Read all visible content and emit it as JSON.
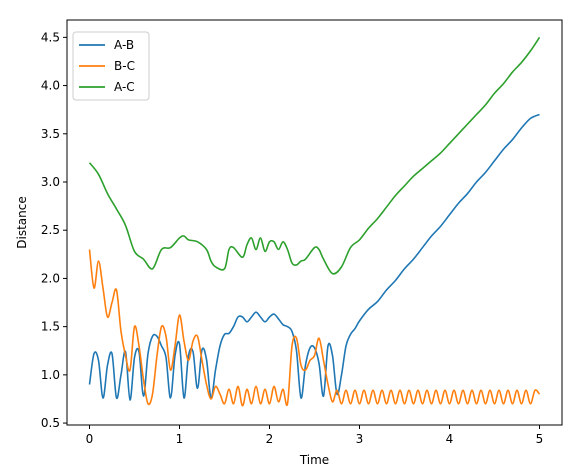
{
  "chart_data": {
    "type": "line",
    "title": "",
    "xlabel": "Time",
    "ylabel": "Distance",
    "xlim": [
      -0.25,
      5.25
    ],
    "ylim": [
      0.48,
      4.68
    ],
    "xticks": [
      0,
      1,
      2,
      3,
      4,
      5
    ],
    "xtick_labels": [
      "0",
      "1",
      "2",
      "3",
      "4",
      "5"
    ],
    "yticks": [
      0.5,
      1.0,
      1.5,
      2.0,
      2.5,
      3.0,
      3.5,
      4.0,
      4.5
    ],
    "ytick_labels": [
      "0.5",
      "1.0",
      "1.5",
      "2.0",
      "2.5",
      "3.0",
      "3.5",
      "4.0",
      "4.5"
    ],
    "grid": false,
    "legend_position": "top-left",
    "series": [
      {
        "name": "A-B",
        "color": "#1f77b4",
        "x": [
          0.0,
          0.05,
          0.1,
          0.15,
          0.2,
          0.25,
          0.3,
          0.35,
          0.4,
          0.45,
          0.5,
          0.55,
          0.6,
          0.65,
          0.7,
          0.75,
          0.8,
          0.85,
          0.9,
          0.95,
          1.0,
          1.05,
          1.1,
          1.15,
          1.2,
          1.25,
          1.3,
          1.35,
          1.4,
          1.45,
          1.5,
          1.55,
          1.6,
          1.65,
          1.7,
          1.75,
          1.8,
          1.85,
          1.9,
          1.95,
          2.0,
          2.05,
          2.1,
          2.15,
          2.2,
          2.25,
          2.3,
          2.35,
          2.4,
          2.45,
          2.5,
          2.55,
          2.6,
          2.65,
          2.7,
          2.75,
          2.8,
          2.85,
          2.9,
          2.95,
          3.0,
          3.1,
          3.2,
          3.3,
          3.4,
          3.5,
          3.6,
          3.7,
          3.8,
          3.9,
          4.0,
          4.1,
          4.2,
          4.3,
          4.4,
          4.5,
          4.6,
          4.7,
          4.8,
          4.9,
          5.0
        ],
        "y": [
          0.9,
          1.22,
          1.15,
          0.76,
          1.1,
          1.22,
          0.76,
          1.0,
          1.24,
          0.74,
          1.18,
          1.24,
          0.78,
          1.22,
          1.4,
          1.4,
          1.3,
          1.18,
          0.76,
          1.2,
          1.32,
          0.76,
          1.2,
          1.24,
          0.86,
          1.26,
          1.16,
          0.76,
          1.05,
          1.3,
          1.42,
          1.43,
          1.5,
          1.6,
          1.6,
          1.55,
          1.6,
          1.65,
          1.6,
          1.55,
          1.6,
          1.63,
          1.58,
          1.52,
          1.5,
          1.45,
          1.25,
          0.76,
          1.1,
          1.28,
          1.28,
          1.12,
          0.78,
          1.3,
          1.2,
          0.8,
          1.0,
          1.3,
          1.42,
          1.48,
          1.56,
          1.68,
          1.76,
          1.88,
          1.98,
          2.1,
          2.2,
          2.32,
          2.44,
          2.54,
          2.66,
          2.78,
          2.88,
          3.0,
          3.1,
          3.22,
          3.34,
          3.44,
          3.56,
          3.66,
          3.7
        ]
      },
      {
        "name": "B-C",
        "color": "#ff7f0e",
        "x": [
          0.0,
          0.05,
          0.1,
          0.15,
          0.2,
          0.25,
          0.3,
          0.35,
          0.4,
          0.45,
          0.5,
          0.55,
          0.6,
          0.65,
          0.7,
          0.75,
          0.8,
          0.85,
          0.9,
          0.95,
          1.0,
          1.05,
          1.1,
          1.15,
          1.2,
          1.25,
          1.3,
          1.35,
          1.4,
          1.45,
          1.5,
          1.55,
          1.6,
          1.65,
          1.7,
          1.75,
          1.8,
          1.85,
          1.9,
          1.95,
          2.0,
          2.05,
          2.1,
          2.15,
          2.2,
          2.25,
          2.3,
          2.35,
          2.4,
          2.45,
          2.5,
          2.55,
          2.6,
          2.65,
          2.7,
          2.75,
          2.8,
          2.85,
          2.9,
          2.95,
          3.0,
          3.05,
          3.1,
          3.15,
          3.2,
          3.25,
          3.3,
          3.35,
          3.4,
          3.45,
          3.5,
          3.55,
          3.6,
          3.65,
          3.7,
          3.75,
          3.8,
          3.85,
          3.9,
          3.95,
          4.0,
          4.05,
          4.1,
          4.15,
          4.2,
          4.25,
          4.3,
          4.35,
          4.4,
          4.45,
          4.5,
          4.55,
          4.6,
          4.65,
          4.7,
          4.75,
          4.8,
          4.85,
          4.9,
          4.95,
          5.0
        ],
        "y": [
          2.3,
          1.9,
          2.18,
          1.9,
          1.6,
          1.75,
          1.88,
          1.45,
          1.2,
          1.05,
          1.5,
          1.3,
          0.95,
          0.7,
          0.8,
          1.2,
          1.5,
          1.4,
          1.05,
          1.3,
          1.62,
          1.35,
          1.15,
          1.35,
          1.4,
          1.15,
          0.9,
          0.75,
          0.88,
          0.8,
          0.7,
          0.85,
          0.7,
          0.88,
          0.68,
          0.85,
          0.7,
          0.88,
          0.7,
          0.85,
          0.7,
          0.88,
          0.72,
          0.85,
          0.7,
          1.3,
          1.38,
          1.1,
          1.05,
          1.15,
          1.2,
          1.38,
          1.15,
          0.9,
          0.72,
          0.84,
          0.7,
          0.84,
          0.7,
          0.84,
          0.7,
          0.84,
          0.7,
          0.84,
          0.7,
          0.84,
          0.7,
          0.84,
          0.7,
          0.84,
          0.7,
          0.84,
          0.7,
          0.84,
          0.7,
          0.84,
          0.7,
          0.84,
          0.7,
          0.84,
          0.7,
          0.84,
          0.7,
          0.84,
          0.7,
          0.84,
          0.7,
          0.84,
          0.7,
          0.84,
          0.7,
          0.84,
          0.7,
          0.84,
          0.7,
          0.84,
          0.7,
          0.84,
          0.7,
          0.84,
          0.8
        ]
      },
      {
        "name": "A-C",
        "color": "#2ca02c",
        "x": [
          0.0,
          0.1,
          0.2,
          0.3,
          0.4,
          0.5,
          0.6,
          0.7,
          0.8,
          0.9,
          1.0,
          1.05,
          1.1,
          1.2,
          1.3,
          1.35,
          1.4,
          1.5,
          1.55,
          1.6,
          1.7,
          1.75,
          1.8,
          1.85,
          1.9,
          1.95,
          2.0,
          2.05,
          2.1,
          2.15,
          2.2,
          2.25,
          2.3,
          2.35,
          2.4,
          2.5,
          2.55,
          2.6,
          2.7,
          2.8,
          2.9,
          3.0,
          3.1,
          3.2,
          3.3,
          3.4,
          3.5,
          3.6,
          3.7,
          3.8,
          3.9,
          4.0,
          4.1,
          4.2,
          4.3,
          4.4,
          4.5,
          4.6,
          4.7,
          4.8,
          4.9,
          5.0
        ],
        "y": [
          3.2,
          3.08,
          2.88,
          2.72,
          2.55,
          2.28,
          2.2,
          2.1,
          2.3,
          2.32,
          2.42,
          2.44,
          2.4,
          2.38,
          2.3,
          2.18,
          2.12,
          2.1,
          2.3,
          2.32,
          2.22,
          2.35,
          2.42,
          2.3,
          2.42,
          2.28,
          2.38,
          2.38,
          2.3,
          2.38,
          2.3,
          2.16,
          2.14,
          2.18,
          2.2,
          2.32,
          2.3,
          2.2,
          2.05,
          2.12,
          2.32,
          2.4,
          2.52,
          2.62,
          2.74,
          2.86,
          2.96,
          3.06,
          3.14,
          3.22,
          3.3,
          3.4,
          3.5,
          3.6,
          3.7,
          3.8,
          3.92,
          4.02,
          4.14,
          4.24,
          4.36,
          4.5
        ]
      }
    ]
  }
}
